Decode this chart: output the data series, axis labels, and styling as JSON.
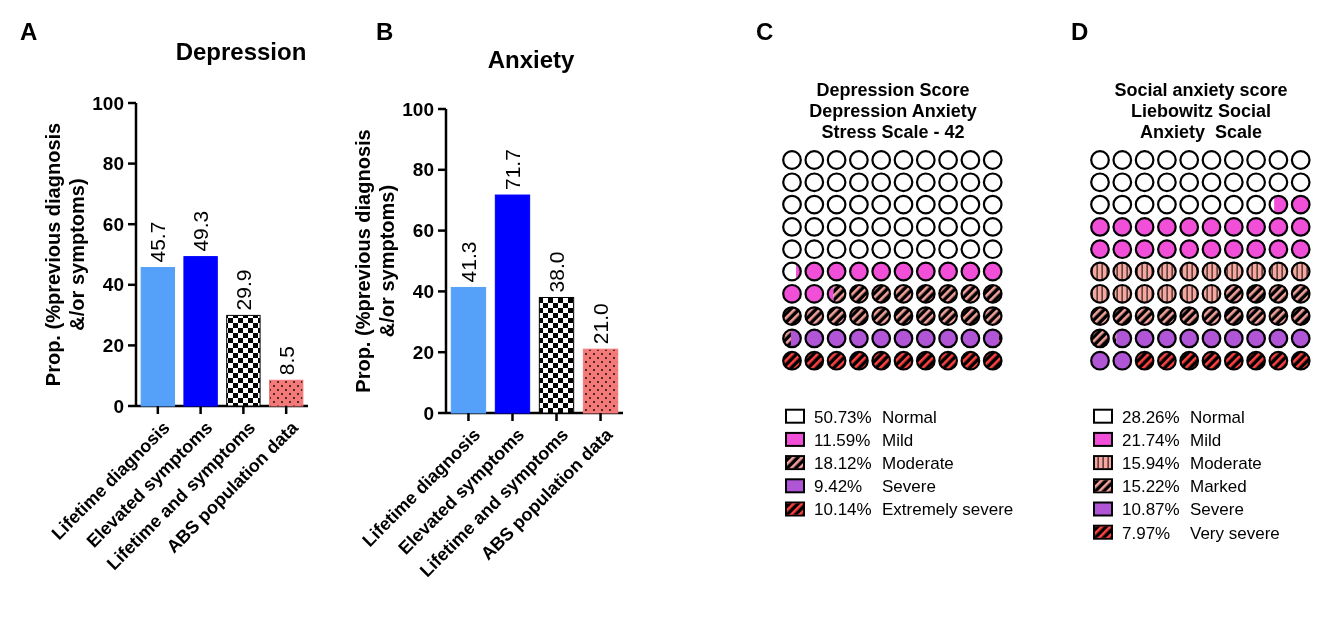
{
  "chart_data": [
    {
      "type": "bar",
      "title": "Depression",
      "ylabel": "Prop. (%previous diagnosis &/or symptoms)",
      "annotations": [
        "A"
      ],
      "categories": [
        "Lifetime diagnosis",
        "Elevated symptoms",
        "Lifetime and symptoms",
        "ABS population data"
      ],
      "values": [
        45.7,
        49.3,
        29.9,
        8.5
      ],
      "colors": [
        "#55a0f8",
        "#0000ff",
        "#000000",
        "#f47a7a"
      ],
      "ylim": [
        0,
        100
      ],
      "yticks": [
        0,
        20,
        40,
        60,
        80,
        100
      ],
      "data_labels": true,
      "grid": false
    },
    {
      "type": "bar",
      "title": "Anxiety",
      "ylabel": "Prop. (%previous diagnosis &/or symptoms)",
      "annotations": [
        "B"
      ],
      "categories": [
        "Lifetime diagnosis",
        "Elevated symptoms",
        "Lifetime and symptoms",
        "ABS population data"
      ],
      "values": [
        41.3,
        71.7,
        38.0,
        21.0
      ],
      "value_labels": [
        "41.3",
        "71.7",
        "38.0",
        "21.0"
      ],
      "colors": [
        "#55a0f8",
        "#0000ff",
        "#000000",
        "#f47a7a"
      ],
      "ylim": [
        0,
        100
      ],
      "yticks": [
        0,
        20,
        40,
        60,
        80,
        100
      ],
      "grid": false
    },
    {
      "type": "other",
      "title": "Depression Score Depression Anxiety Stress Scale - 42",
      "annotations": [
        "C"
      ],
      "categories": [
        "Normal",
        "Mild",
        "Moderate",
        "Severe",
        "Extremely severe"
      ],
      "values": [
        50.73,
        11.59,
        18.12,
        9.42,
        10.14
      ],
      "value_labels": [
        "50.73%",
        "11.59%",
        "18.12%",
        "9.42%",
        "10.14%"
      ],
      "colors": [
        "#ffffff",
        "#f24fd8",
        "#f4a09a",
        "#b055d6",
        "#ff4040"
      ]
    },
    {
      "type": "other",
      "title": "Social anxiety score Liebowitz Social Anxiety  Scale",
      "annotations": [
        "D"
      ],
      "categories": [
        "Normal",
        "Mild",
        "Moderate",
        "Marked",
        "Severe",
        "Very severe"
      ],
      "values": [
        28.26,
        21.74,
        15.94,
        15.22,
        10.87,
        7.97
      ],
      "value_labels": [
        "28.26%",
        "21.74%",
        "15.94%",
        "15.22%",
        "10.87%",
        "7.97%"
      ],
      "colors": [
        "#ffffff",
        "#f24fd8",
        "#f6a8a0",
        "#f4a09a",
        "#b055d6",
        "#ff4040"
      ]
    }
  ]
}
